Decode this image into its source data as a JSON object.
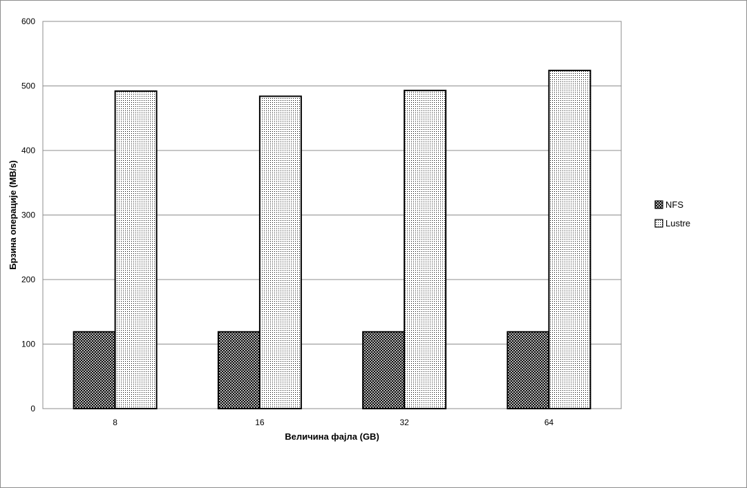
{
  "chart_data": {
    "type": "bar",
    "categories": [
      "8",
      "16",
      "32",
      "64"
    ],
    "series": [
      {
        "name": "NFS",
        "values": [
          119,
          119,
          119,
          119
        ],
        "pattern": "crosshatch"
      },
      {
        "name": "Lustre",
        "values": [
          492,
          484,
          493,
          524
        ],
        "pattern": "dots"
      }
    ],
    "xlabel": "Величина фајла (GB)",
    "ylabel": "Брзина операције (MB/s)",
    "ylim": [
      0,
      600
    ],
    "yticks": [
      0,
      100,
      200,
      300,
      400,
      500,
      600
    ],
    "grid": true,
    "legend": "right",
    "colors": {
      "bar_stroke": "#000000",
      "grid": "#8c8c8c",
      "frame": "#8c8c8c"
    }
  }
}
